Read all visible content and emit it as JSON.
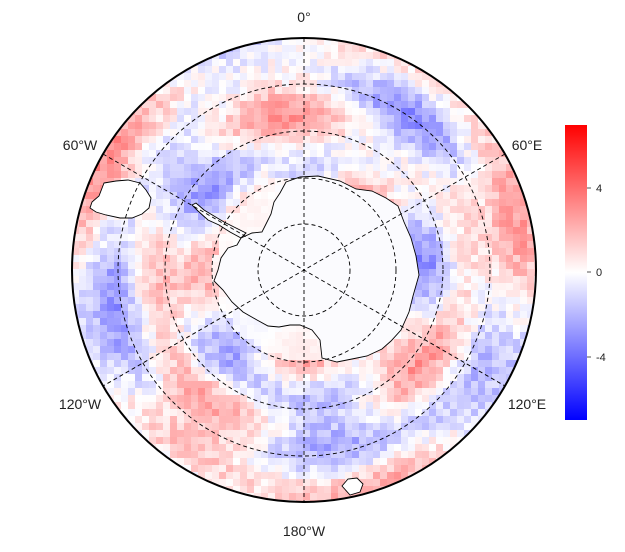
{
  "map": {
    "projection": "south-polar-stereographic",
    "longitude_labels": {
      "top": "0°",
      "upper_left": "60°W",
      "upper_right": "60°E",
      "lower_left": "120°W",
      "lower_right": "120°E",
      "bottom": "180°W"
    },
    "graticule_style": "dashed",
    "land_fill": "#ffffff",
    "coastline_color": "#000000"
  },
  "colorbar": {
    "ticks": [
      "4",
      "0",
      "-4"
    ],
    "colors": {
      "max": "#ff0000",
      "mid": "#ffffff",
      "min": "#0000ff"
    }
  }
}
